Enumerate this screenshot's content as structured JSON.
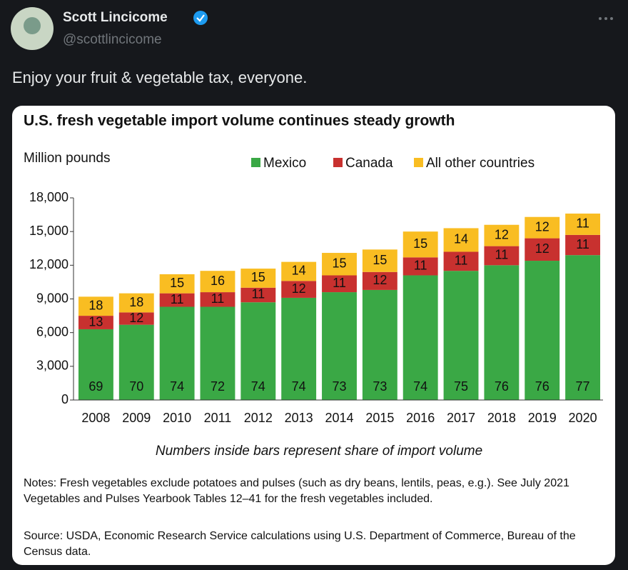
{
  "tweet": {
    "name": "Scott Lincicome",
    "handle": "@scottlincicome",
    "text": "Enjoy your fruit & vegetable tax, everyone."
  },
  "chart_data": {
    "type": "stacked-bar",
    "title": "U.S. fresh vegetable import volume continues steady growth",
    "y_label": "Million pounds",
    "caption": "Numbers inside bars represent share of import volume",
    "notes": "Notes: Fresh vegetables exclude potatoes and pulses (such as dry beans, lentils, peas, e.g.). See July 2021 Vegetables and Pulses Yearbook Tables 12–41 for the fresh vegetables included.",
    "source": "Source: USDA, Economic Research Service calculations using U.S. Department of Commerce, Bureau of the Census data.",
    "categories": [
      "2008",
      "2009",
      "2010",
      "2011",
      "2012",
      "2013",
      "2014",
      "2015",
      "2016",
      "2017",
      "2018",
      "2019",
      "2020"
    ],
    "series": [
      {
        "name": "Mexico",
        "color": "#3aa845",
        "values": [
          6300,
          6700,
          8300,
          8300,
          8700,
          9100,
          9600,
          9800,
          11100,
          11500,
          12000,
          12400,
          12900
        ],
        "shares": [
          69,
          70,
          74,
          72,
          74,
          74,
          73,
          73,
          74,
          75,
          76,
          76,
          77
        ]
      },
      {
        "name": "Canada",
        "color": "#c8312f",
        "values": [
          1200,
          1100,
          1200,
          1300,
          1300,
          1500,
          1500,
          1600,
          1600,
          1700,
          1700,
          2000,
          1800
        ],
        "shares": [
          13,
          12,
          11,
          11,
          11,
          12,
          11,
          12,
          11,
          11,
          11,
          12,
          11
        ]
      },
      {
        "name": "All other countries",
        "color": "#f9bd22",
        "values": [
          1700,
          1700,
          1700,
          1900,
          1700,
          1700,
          2000,
          2000,
          2300,
          2100,
          1900,
          1900,
          1900
        ],
        "shares": [
          18,
          18,
          15,
          16,
          15,
          14,
          15,
          15,
          15,
          14,
          12,
          12,
          11
        ]
      }
    ],
    "ylim": [
      0,
      18000
    ],
    "yticks": [
      0,
      {
        "value": 3000,
        "label": "3,000"
      },
      {
        "value": 6000,
        "label": "6,000"
      },
      {
        "value": 9000,
        "label": "9,000"
      },
      {
        "value": 12000,
        "label": "12,000"
      },
      {
        "value": 15000,
        "label": "15,000"
      },
      {
        "value": 18000,
        "label": "18,000"
      }
    ],
    "grid": false
  }
}
